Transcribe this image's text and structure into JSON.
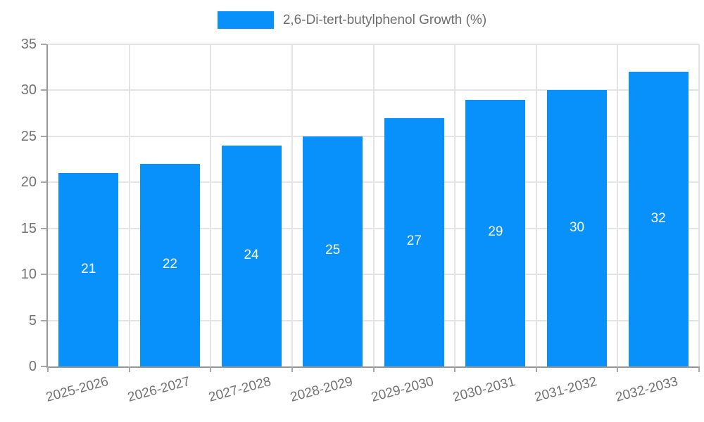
{
  "chart_data": {
    "type": "bar",
    "title": "",
    "legend": "2,6-Di-tert-butylphenol Growth (%)",
    "legend_position": "top-center",
    "categories": [
      "2025-2026",
      "2026-2027",
      "2027-2028",
      "2028-2029",
      "2029-2030",
      "2030-2031",
      "2031-2032",
      "2032-2033"
    ],
    "series": [
      {
        "name": "2,6-Di-tert-butylphenol Growth (%)",
        "values": [
          21,
          22,
          24,
          25,
          27,
          29,
          30,
          32
        ]
      }
    ],
    "xlabel": "",
    "ylabel": "",
    "ylim": [
      0,
      35
    ],
    "yticks": [
      0,
      5,
      10,
      15,
      20,
      25,
      30,
      35
    ],
    "grid": true,
    "bar_label_position": "inside-center",
    "colors": {
      "bar": "#0991fb",
      "bar_value_label": "#ffffff",
      "axis_line": "#979797",
      "gridline": "#e4e4e4",
      "tick_label": "#737373",
      "legend_text": "#6e6e6e",
      "background": "#ffffff"
    }
  }
}
